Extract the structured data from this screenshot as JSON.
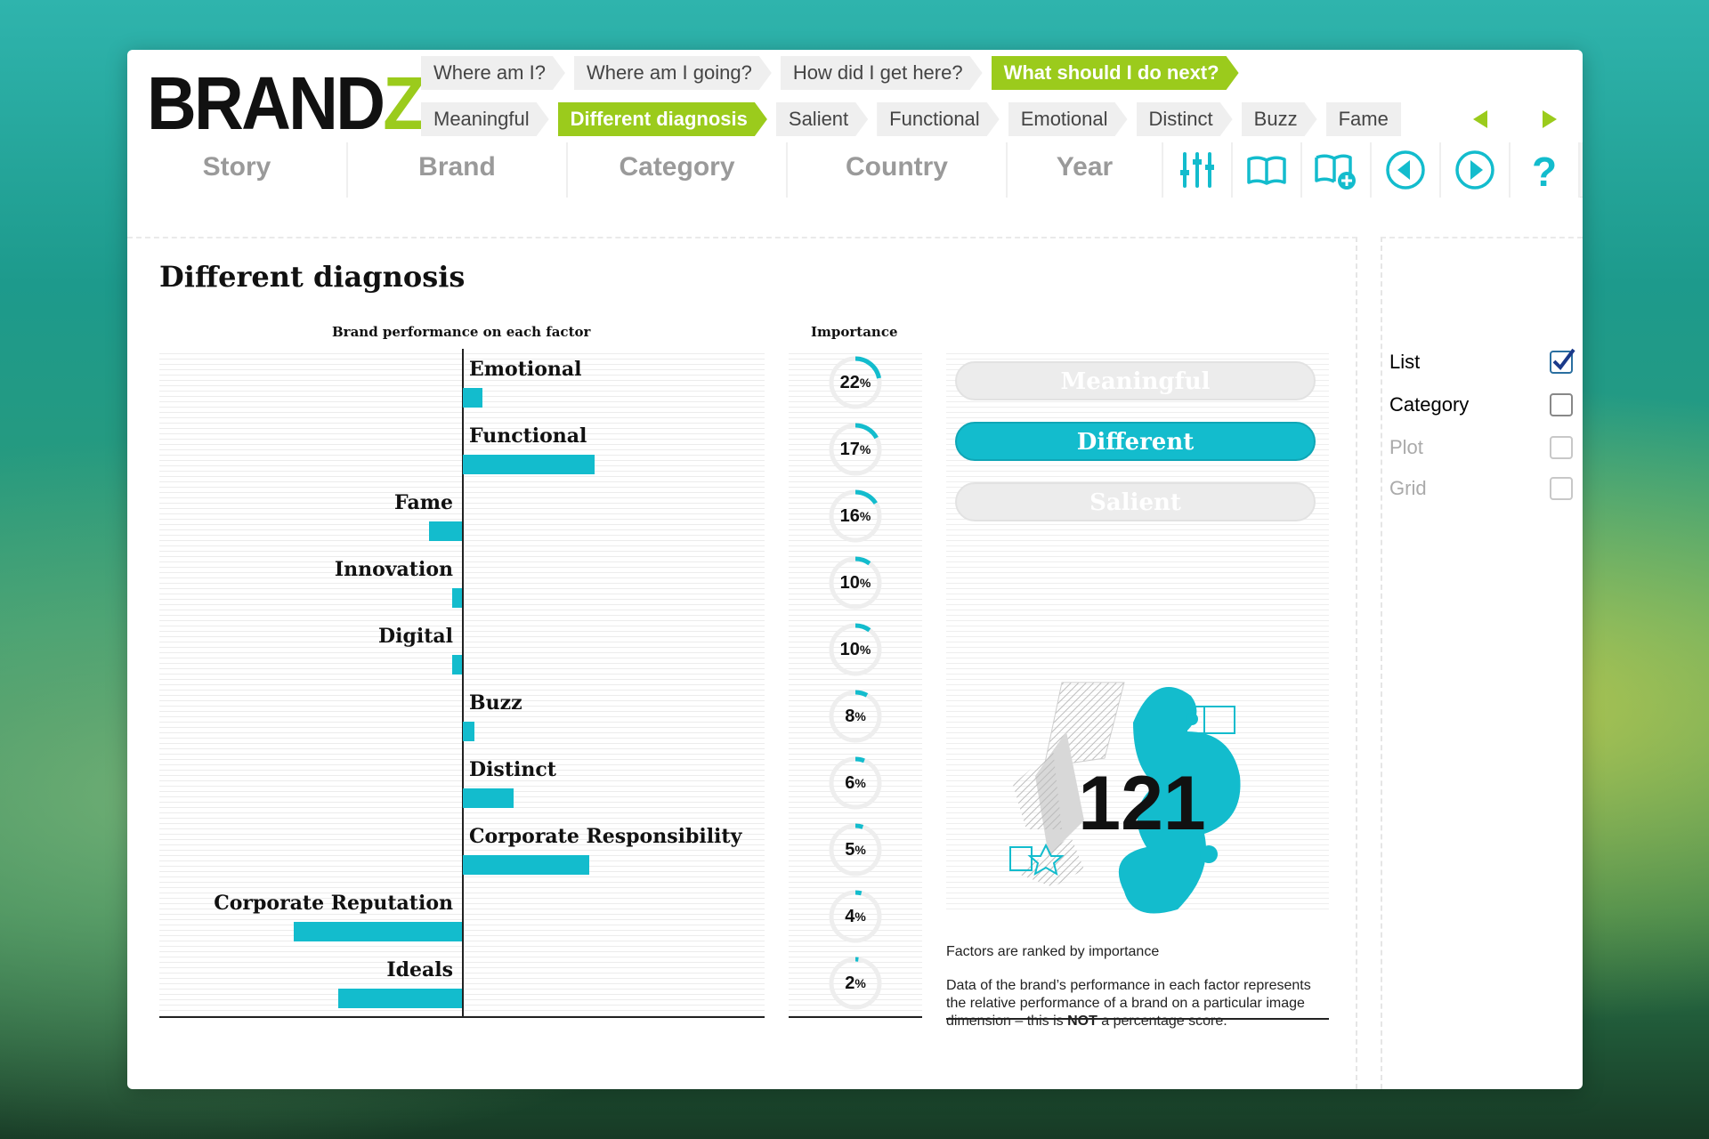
{
  "app": {
    "logo_main": "BRAND",
    "logo_accent": "Z"
  },
  "breadcrumbs_top": [
    "Where am I?",
    "Where am I going?",
    "How did I get here?",
    "What should I do next?"
  ],
  "breadcrumbs_top_active": 3,
  "breadcrumbs_sub": [
    "Meaningful",
    "Different diagnosis",
    "Salient",
    "Functional",
    "Emotional",
    "Distinct",
    "Buzz",
    "Fame"
  ],
  "breadcrumbs_sub_active": 1,
  "tabs": [
    "Story",
    "Brand",
    "Category",
    "Country",
    "Year"
  ],
  "toolbar": [
    "settings-sliders-icon",
    "book-icon",
    "book-add-icon",
    "previous-icon",
    "next-icon",
    "help-icon"
  ],
  "page": {
    "title": "Different diagnosis",
    "perf_header": "Brand performance on each factor",
    "importance_header": "Importance"
  },
  "factors": [
    {
      "name": "Emotional",
      "performance": 12,
      "importance": 22
    },
    {
      "name": "Functional",
      "performance": 80,
      "importance": 17
    },
    {
      "name": "Fame",
      "performance": -20,
      "importance": 16
    },
    {
      "name": "Innovation",
      "performance": -6,
      "importance": 10
    },
    {
      "name": "Digital",
      "performance": -6,
      "importance": 10
    },
    {
      "name": "Buzz",
      "performance": 7,
      "importance": 8
    },
    {
      "name": "Distinct",
      "performance": 31,
      "importance": 6
    },
    {
      "name": "Corporate Responsibility",
      "performance": 77,
      "importance": 5
    },
    {
      "name": "Corporate Reputation",
      "performance": -102,
      "importance": 4
    },
    {
      "name": "Ideals",
      "performance": -75,
      "importance": 2
    }
  ],
  "percent_sign": "%",
  "pillars": [
    {
      "label": "Meaningful",
      "active": false
    },
    {
      "label": "Different",
      "active": true
    },
    {
      "label": "Salient",
      "active": false
    }
  ],
  "score": "121",
  "notes": {
    "ranked": "Factors are ranked by importance",
    "explain_pre": "Data of the brand’s performance in each factor represents the relative performance of a brand on a particular image dimension – this is ",
    "explain_bold": "NOT",
    "explain_post": " a percentage score."
  },
  "view_options": [
    {
      "label": "List",
      "checked": true,
      "enabled": true
    },
    {
      "label": "Category",
      "checked": false,
      "enabled": true
    },
    {
      "label": "Plot",
      "checked": false,
      "enabled": false
    },
    {
      "label": "Grid",
      "checked": false,
      "enabled": false
    }
  ],
  "colors": {
    "accent_green": "#9bcb1c",
    "accent_teal": "#13bccd"
  }
}
